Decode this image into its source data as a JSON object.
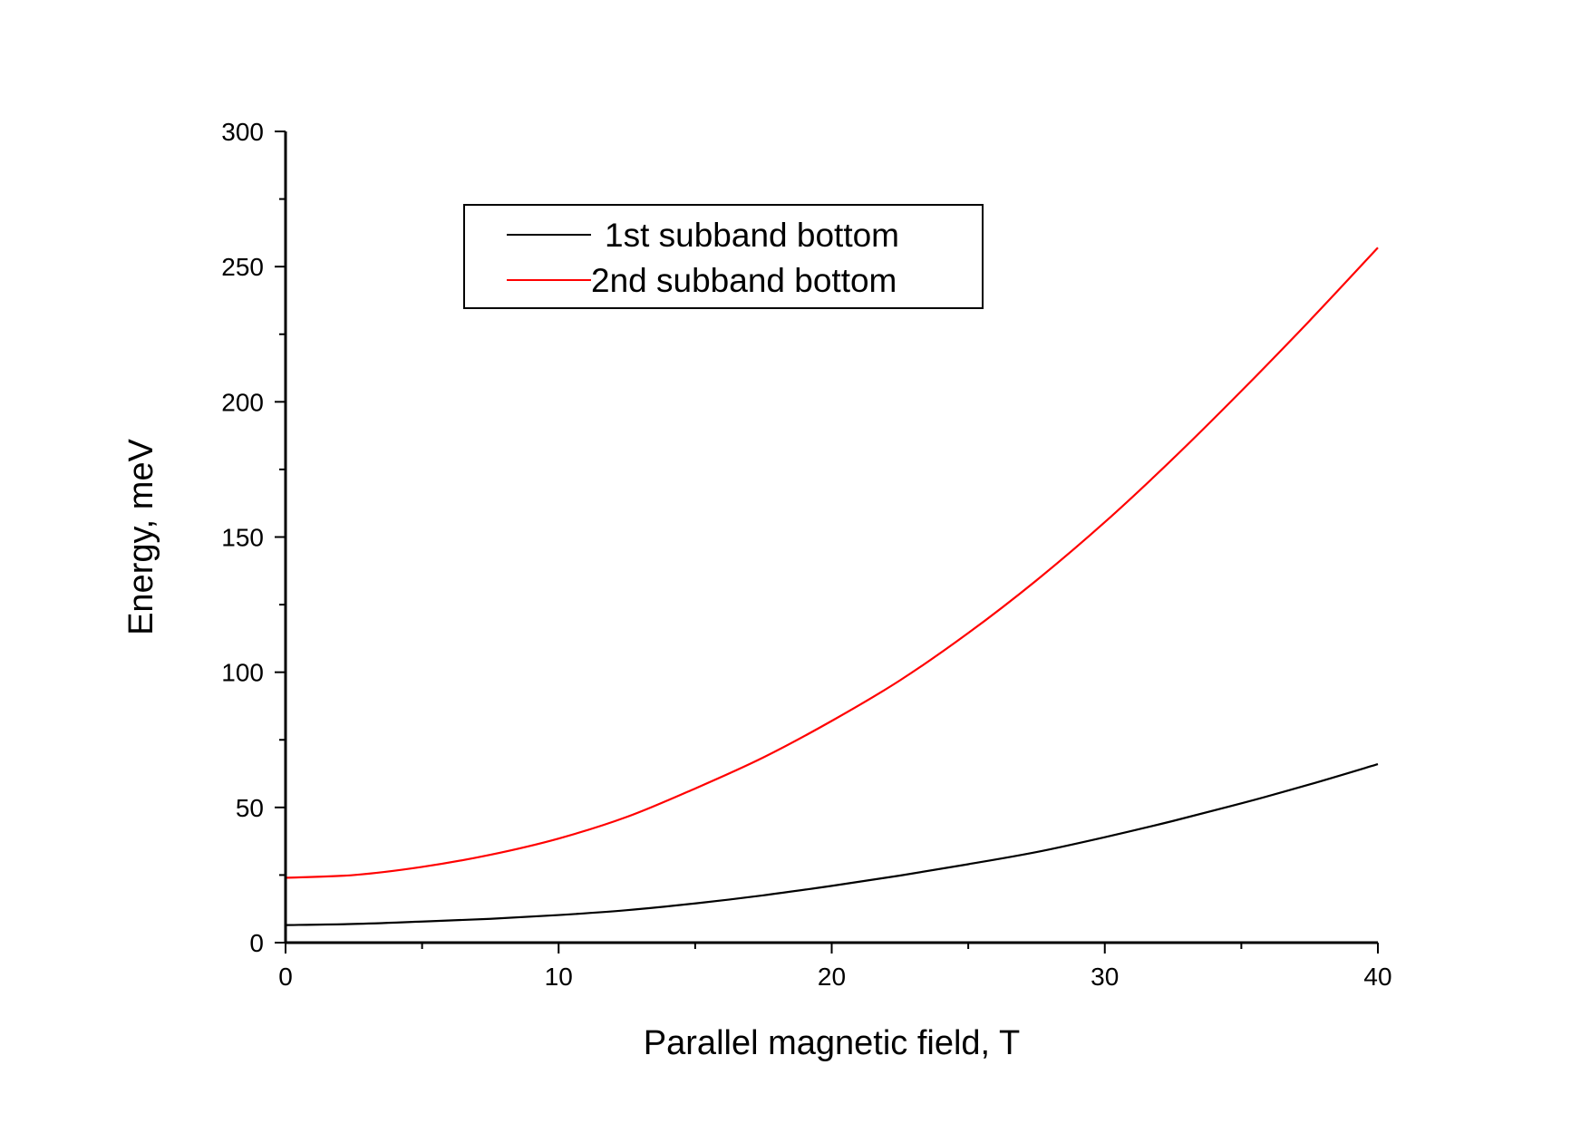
{
  "chart_data": {
    "type": "line",
    "title": "",
    "xlabel": "Parallel magnetic field, T",
    "ylabel": "Energy, meV",
    "xlim": [
      0,
      40
    ],
    "ylim": [
      0,
      300
    ],
    "xticks": [
      "0",
      "10",
      "20",
      "30",
      "40"
    ],
    "yticks": [
      "0",
      "50",
      "100",
      "150",
      "200",
      "250",
      "300"
    ],
    "grid": false,
    "legend_position": "top-center",
    "x": [
      0,
      2.5,
      5,
      7.5,
      10,
      12.5,
      15,
      17.5,
      20,
      22.5,
      25,
      27.5,
      30,
      32.5,
      35,
      37.5,
      40
    ],
    "series": [
      {
        "name": "1st subband bottom",
        "color": "#000000",
        "values": [
          6.5,
          6.9,
          7.8,
          8.8,
          10.2,
          12.0,
          14.5,
          17.5,
          21.0,
          24.8,
          29.0,
          33.5,
          39.0,
          45.0,
          51.5,
          58.5,
          66.0
        ]
      },
      {
        "name": "2nd subband bottom",
        "color": "#ff0000",
        "values": [
          24.0,
          25.0,
          28.0,
          32.5,
          38.5,
          46.5,
          57.0,
          68.5,
          82.0,
          97.0,
          114.5,
          134.0,
          155.5,
          179.0,
          204.0,
          230.0,
          257.0
        ]
      }
    ]
  }
}
